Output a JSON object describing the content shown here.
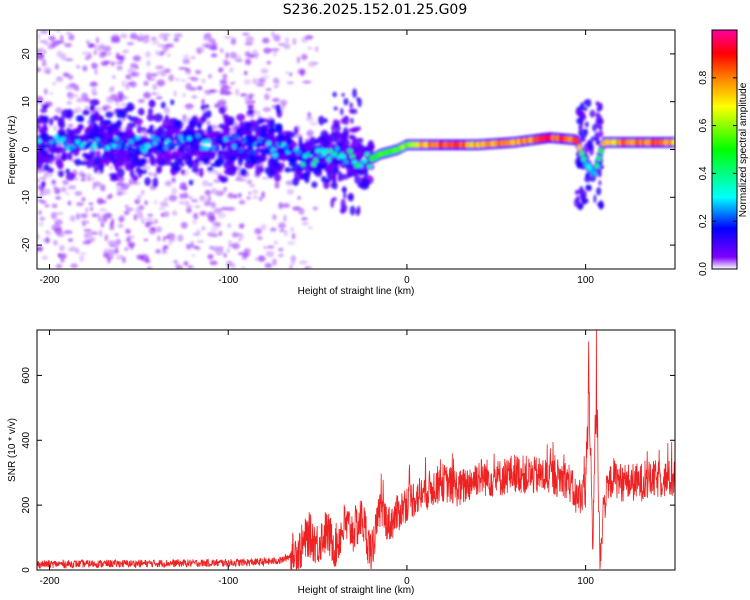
{
  "title": "S236.2025.152.01.25.G09",
  "chart_data": [
    {
      "type": "heatmap",
      "xlabel": "Height of straight line (km)",
      "ylabel": "Frequency (Hz)",
      "xlim": [
        -207,
        150
      ],
      "ylim": [
        -25,
        25
      ],
      "xticks": [
        -200,
        -100,
        0,
        100
      ],
      "yticks": [
        -20,
        -10,
        0,
        10,
        20
      ],
      "colorbar": {
        "label": "Normalized spectral amplitude",
        "range": [
          0,
          1
        ],
        "ticks": [
          0.0,
          0.2,
          0.4,
          0.6,
          0.8
        ],
        "tick_labels": [
          "0.0",
          "0.2",
          "0.4",
          "0.6",
          "0.8"
        ],
        "colormap": [
          "#ffffff",
          "#7f00ff",
          "#0000ff",
          "#00ffff",
          "#00ff00",
          "#ffff00",
          "#ff8000",
          "#ff0000",
          "#ff00a0"
        ]
      },
      "ridge": {
        "x": [
          -207,
          -180,
          -150,
          -120,
          -90,
          -70,
          -55,
          -45,
          -35,
          -25,
          -15,
          -5,
          0,
          20,
          40,
          60,
          80,
          95,
          100,
          105,
          110,
          130,
          150
        ],
        "freq": [
          1,
          1.5,
          1,
          1.5,
          1,
          0,
          -2,
          -1,
          -1,
          -3,
          -1,
          0,
          1,
          1,
          1,
          1.5,
          2.5,
          2,
          -3,
          -5,
          1.5,
          1.5,
          1.5
        ],
        "amplitude": [
          0.25,
          0.3,
          0.25,
          0.25,
          0.25,
          0.3,
          0.35,
          0.35,
          0.4,
          0.45,
          0.5,
          0.55,
          0.6,
          0.9,
          0.75,
          0.8,
          0.9,
          0.85,
          0.3,
          0.3,
          0.7,
          0.9,
          0.75
        ]
      }
    },
    {
      "type": "line",
      "xlabel": "Height of straight line (km)",
      "ylabel": "SNR (10 * v/v)",
      "xlim": [
        -207,
        150
      ],
      "ylim": [
        0,
        740
      ],
      "xticks": [
        -200,
        -100,
        0,
        100
      ],
      "yticks": [
        0,
        200,
        400,
        600
      ],
      "color": "#ee2222",
      "series": [
        {
          "x": [
            -207,
            -150,
            -100,
            -80,
            -70,
            -60,
            -55,
            -50,
            -45,
            -40,
            -35,
            -30,
            -25,
            -20,
            -15,
            -10,
            0,
            10,
            20,
            30,
            40,
            50,
            60,
            70,
            80,
            90,
            95,
            100,
            102,
            104,
            106,
            108,
            110,
            115,
            120,
            130,
            140,
            150
          ],
          "y": [
            18,
            20,
            22,
            25,
            30,
            60,
            110,
            80,
            120,
            70,
            140,
            120,
            160,
            50,
            190,
            140,
            210,
            240,
            270,
            250,
            290,
            280,
            300,
            290,
            290,
            280,
            220,
            250,
            720,
            20,
            720,
            20,
            200,
            290,
            270,
            270,
            280,
            280
          ]
        }
      ]
    }
  ]
}
